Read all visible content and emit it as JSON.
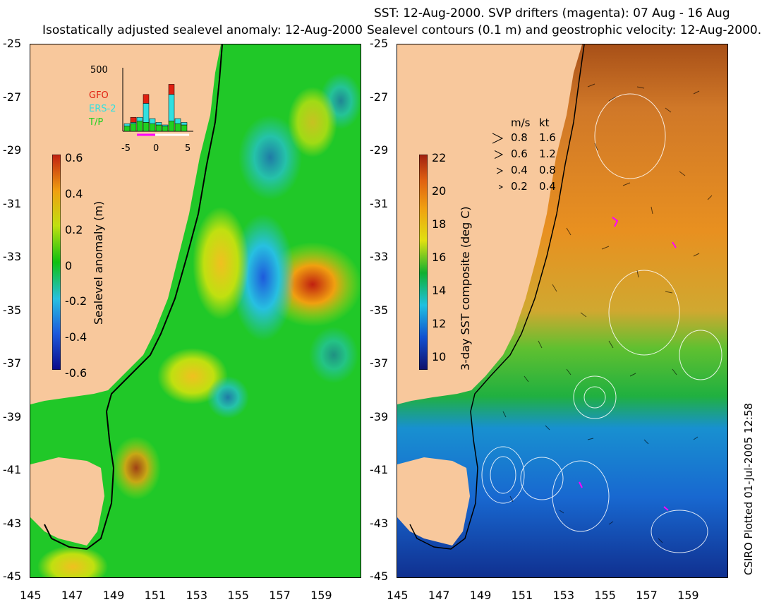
{
  "left_panel": {
    "title": "Isostatically adjusted sealevel anomaly: 12-Aug-2000",
    "colorbar": {
      "label": "Sealevel anomaly (m)",
      "ticks": [
        "0.6",
        "0.4",
        "0.2",
        "0",
        "-0.2",
        "-0.4",
        "-0.6"
      ],
      "range": [
        -0.6,
        0.6
      ],
      "colors": [
        "#0a0a8a",
        "#1e5adc",
        "#27c0e0",
        "#10c010",
        "#c0e010",
        "#f0a010",
        "#c02010"
      ]
    },
    "inset": {
      "y_tick": "500",
      "legend": [
        {
          "label": "GFO",
          "color": "#e02010"
        },
        {
          "label": "ERS-2",
          "color": "#30e0e0"
        },
        {
          "label": "T/P",
          "color": "#20d020"
        }
      ],
      "x_ticks": [
        "-5",
        "0",
        "5"
      ],
      "bars": [
        {
          "day": -5,
          "tp": 40,
          "ers": 20,
          "gfo": 0
        },
        {
          "day": -4,
          "tp": 60,
          "ers": 10,
          "gfo": 40
        },
        {
          "day": -3,
          "tp": 80,
          "ers": 30,
          "gfo": 0
        },
        {
          "day": -2,
          "tp": 70,
          "ers": 150,
          "gfo": 70
        },
        {
          "day": -1,
          "tp": 60,
          "ers": 40,
          "gfo": 0
        },
        {
          "day": 0,
          "tp": 50,
          "ers": 20,
          "gfo": 0
        },
        {
          "day": 1,
          "tp": 40,
          "ers": 10,
          "gfo": 0
        },
        {
          "day": 2,
          "tp": 80,
          "ers": 210,
          "gfo": 80
        },
        {
          "day": 3,
          "tp": 60,
          "ers": 40,
          "gfo": 0
        },
        {
          "day": 4,
          "tp": 50,
          "ers": 20,
          "gfo": 0
        }
      ]
    }
  },
  "right_panel": {
    "title_line1": "SST: 12-Aug-2000. SVP drifters (magenta): 07 Aug - 16 Aug",
    "title_line2": "Sealevel contours (0.1 m) and geostrophic velocity: 12-Aug-2000.",
    "colorbar": {
      "label": "3-day SST composite (deg C)",
      "ticks": [
        "22",
        "20",
        "18",
        "16",
        "14",
        "12",
        "10"
      ],
      "range": [
        9,
        22
      ],
      "colors": [
        "#10106a",
        "#1050d0",
        "#20c0e0",
        "#10b030",
        "#e0e010",
        "#f0a010",
        "#e06010",
        "#a02010"
      ]
    },
    "velocity_legend": {
      "header_ms": "m/s",
      "header_kt": "kt",
      "rows": [
        {
          "ms": "0.8",
          "kt": "1.6"
        },
        {
          "ms": "0.6",
          "kt": "1.2"
        },
        {
          "ms": "0.4",
          "kt": "0.8"
        },
        {
          "ms": "0.2",
          "kt": "0.4"
        }
      ]
    }
  },
  "y_axis_ticks": [
    "-25",
    "-27",
    "-29",
    "-31",
    "-33",
    "-35",
    "-37",
    "-39",
    "-41",
    "-43",
    "-45"
  ],
  "x_axis_ticks": [
    "145",
    "147",
    "149",
    "151",
    "153",
    "155",
    "157",
    "159"
  ],
  "credit": "CSIRO Plotted 01-Jul-2005 12:58"
}
